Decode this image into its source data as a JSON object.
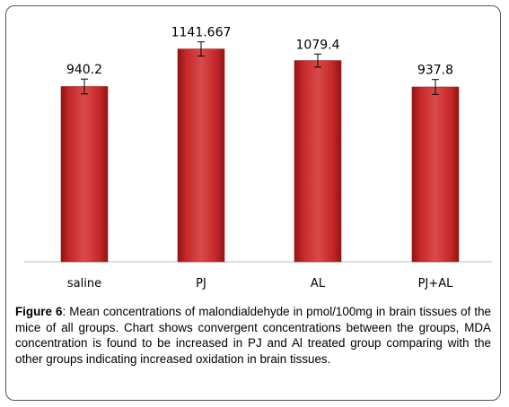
{
  "chart_data": {
    "type": "bar",
    "categories": [
      "saline",
      "PJ",
      "AL",
      "PJ+AL"
    ],
    "values": [
      940.2,
      1141.667,
      1079.4,
      937.8
    ],
    "value_labels": [
      "940.2",
      "1141.667",
      "1079.4",
      "937.8"
    ],
    "error": [
      40,
      38,
      35,
      40
    ],
    "ylim": [
      0,
      1260
    ],
    "bar_color": "#c62828",
    "grid": false,
    "legend": "none"
  },
  "caption": {
    "label": "Figure 6",
    "text": ":  Mean concentrations of malondialdehyde in pmol/100mg in brain tissues of the mice of all groups. Chart shows convergent concentrations between the groups, MDA concentration is found to be increased in PJ and Al treated group comparing with the other groups indicating increased oxidation in brain tissues."
  }
}
